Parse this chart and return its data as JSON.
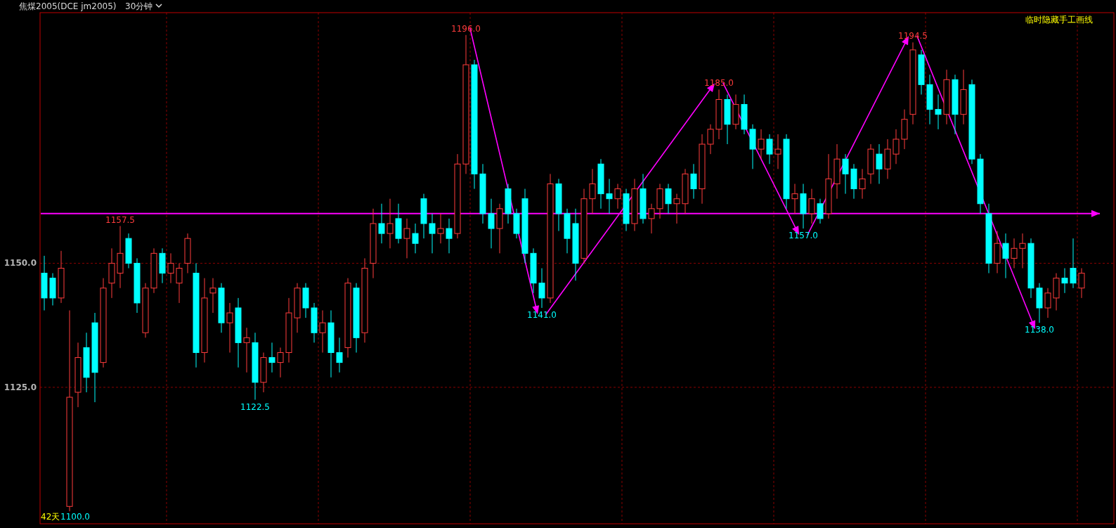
{
  "chart_data": {
    "type": "candlestick",
    "title": "焦煤2005(DCE jm2005)",
    "subtitle": "30分钟",
    "categories": [
      null,
      null,
      null,
      null,
      null,
      null,
      null,
      null,
      null,
      null,
      null,
      null,
      null,
      null,
      null,
      null,
      null,
      null,
      null,
      null,
      null,
      null,
      null,
      null,
      null,
      null,
      null,
      null,
      null,
      null,
      null,
      null,
      null,
      null,
      null,
      null,
      null,
      null,
      null,
      null,
      null,
      null,
      null,
      null,
      null,
      null,
      null,
      null,
      null,
      null,
      null,
      null,
      null,
      null,
      null,
      null,
      null,
      null,
      null,
      null,
      null,
      null,
      null,
      null,
      null,
      null,
      null,
      null,
      null,
      null,
      null,
      null,
      null,
      null,
      null,
      null,
      null,
      null,
      null,
      null,
      null,
      null,
      null,
      null,
      null,
      null,
      null,
      null,
      null,
      null,
      null,
      null,
      null,
      null,
      null,
      null,
      null,
      null,
      null,
      null,
      null,
      null,
      null,
      null,
      null,
      null,
      null,
      null,
      null,
      null,
      null,
      null,
      null,
      null,
      null,
      null,
      null,
      null,
      null,
      null,
      null,
      null,
      null,
      null
    ],
    "ohlc": [
      [
        1148,
        1151.5,
        1140.5,
        1143
      ],
      [
        1147,
        1148,
        1141.5,
        1143
      ],
      [
        1143,
        1152.5,
        1142,
        1149
      ],
      [
        1101,
        1140.5,
        1100,
        1123
      ],
      [
        1124,
        1134,
        1121,
        1131
      ],
      [
        1133,
        1136,
        1124,
        1127
      ],
      [
        1138,
        1140,
        1122,
        1128
      ],
      [
        1130,
        1147,
        1129,
        1145
      ],
      [
        1146,
        1153,
        1143,
        1150
      ],
      [
        1148,
        1157.5,
        1145,
        1152
      ],
      [
        1155,
        1156,
        1149,
        1150
      ],
      [
        1150,
        1151,
        1140,
        1142
      ],
      [
        1136,
        1146,
        1135,
        1145
      ],
      [
        1145,
        1153,
        1144,
        1152
      ],
      [
        1152,
        1153,
        1146,
        1148
      ],
      [
        1148,
        1152,
        1146,
        1150
      ],
      [
        1146,
        1150,
        1142,
        1149
      ],
      [
        1150,
        1156,
        1148,
        1155
      ],
      [
        1148,
        1150,
        1129,
        1132
      ],
      [
        1132,
        1147,
        1130,
        1143
      ],
      [
        1144,
        1147,
        1140,
        1145
      ],
      [
        1145,
        1146,
        1136,
        1138
      ],
      [
        1138,
        1142,
        1132,
        1140
      ],
      [
        1141,
        1143,
        1129,
        1134
      ],
      [
        1134,
        1137,
        1128,
        1135
      ],
      [
        1134,
        1136,
        1122.5,
        1126
      ],
      [
        1126,
        1132,
        1124,
        1131
      ],
      [
        1131,
        1134,
        1128,
        1130
      ],
      [
        1130,
        1133,
        1127,
        1132
      ],
      [
        1132,
        1143,
        1130,
        1140
      ],
      [
        1139,
        1146,
        1136,
        1145
      ],
      [
        1145,
        1146,
        1139,
        1141
      ],
      [
        1141,
        1142,
        1134,
        1136
      ],
      [
        1136,
        1140.5,
        1132,
        1138
      ],
      [
        1138,
        1140.5,
        1127,
        1132
      ],
      [
        1132,
        1135,
        1128,
        1130
      ],
      [
        1133,
        1147,
        1131,
        1146
      ],
      [
        1145,
        1146,
        1132,
        1135
      ],
      [
        1136,
        1151,
        1134,
        1149
      ],
      [
        1150,
        1161,
        1147,
        1158
      ],
      [
        1158,
        1162,
        1154,
        1156
      ],
      [
        1156,
        1163,
        1153,
        1158
      ],
      [
        1159,
        1162,
        1154,
        1155
      ],
      [
        1155,
        1159,
        1151,
        1157
      ],
      [
        1156,
        1158,
        1152,
        1154
      ],
      [
        1163,
        1164,
        1155,
        1158
      ],
      [
        1158,
        1160,
        1152,
        1156
      ],
      [
        1156,
        1160,
        1154,
        1157
      ],
      [
        1157,
        1159,
        1152,
        1155
      ],
      [
        1156,
        1172,
        1155,
        1170
      ],
      [
        1170,
        1196,
        1168,
        1190
      ],
      [
        1190,
        1191,
        1165,
        1168
      ],
      [
        1168,
        1170,
        1158,
        1160
      ],
      [
        1160,
        1163,
        1153,
        1157
      ],
      [
        1157,
        1162,
        1152,
        1161
      ],
      [
        1165,
        1166,
        1158,
        1160
      ],
      [
        1160,
        1161,
        1155,
        1156
      ],
      [
        1163,
        1165,
        1150,
        1152
      ],
      [
        1152,
        1153,
        1144,
        1146
      ],
      [
        1146,
        1149,
        1141,
        1143
      ],
      [
        1143,
        1168,
        1142,
        1166
      ],
      [
        1166,
        1167,
        1156.5,
        1160
      ],
      [
        1160,
        1161,
        1152,
        1155
      ],
      [
        1158,
        1161,
        1146.5,
        1150
      ],
      [
        1151,
        1165,
        1150,
        1163
      ],
      [
        1163,
        1169,
        1160,
        1166
      ],
      [
        1170,
        1171,
        1161,
        1164
      ],
      [
        1164,
        1167,
        1160,
        1163
      ],
      [
        1163,
        1166,
        1161,
        1165
      ],
      [
        1164,
        1165,
        1156.5,
        1158
      ],
      [
        1158,
        1167,
        1156.5,
        1165
      ],
      [
        1165,
        1168,
        1158,
        1159
      ],
      [
        1159,
        1162,
        1156,
        1161
      ],
      [
        1161,
        1166,
        1159,
        1165
      ],
      [
        1165,
        1166,
        1160,
        1162
      ],
      [
        1162,
        1164,
        1158,
        1163
      ],
      [
        1162,
        1169,
        1160,
        1168
      ],
      [
        1168,
        1170,
        1163,
        1165
      ],
      [
        1165,
        1176,
        1162,
        1174
      ],
      [
        1174,
        1178,
        1172,
        1177
      ],
      [
        1177,
        1185,
        1175,
        1183
      ],
      [
        1183,
        1184,
        1174,
        1178
      ],
      [
        1178,
        1184,
        1177,
        1182
      ],
      [
        1182,
        1184,
        1176,
        1177
      ],
      [
        1177,
        1178,
        1169,
        1173
      ],
      [
        1173,
        1177,
        1171,
        1175
      ],
      [
        1175,
        1176,
        1170,
        1172
      ],
      [
        1172,
        1176,
        1169,
        1173
      ],
      [
        1175,
        1176,
        1161,
        1163
      ],
      [
        1163,
        1166,
        1160,
        1164
      ],
      [
        1164,
        1166,
        1157,
        1160
      ],
      [
        1160,
        1165,
        1158,
        1163
      ],
      [
        1162,
        1163,
        1158,
        1159
      ],
      [
        1160,
        1172,
        1159,
        1167
      ],
      [
        1166,
        1174,
        1163,
        1171
      ],
      [
        1171,
        1172,
        1164,
        1168
      ],
      [
        1169,
        1170,
        1163,
        1165
      ],
      [
        1165,
        1169,
        1163,
        1167
      ],
      [
        1168,
        1174,
        1166,
        1173
      ],
      [
        1172,
        1174,
        1166,
        1169
      ],
      [
        1169,
        1175,
        1167,
        1173
      ],
      [
        1172,
        1177,
        1170,
        1175
      ],
      [
        1175,
        1181,
        1173,
        1179
      ],
      [
        1180,
        1194.5,
        1178,
        1193
      ],
      [
        1192,
        1193,
        1184,
        1186
      ],
      [
        1186,
        1188,
        1178,
        1181
      ],
      [
        1181,
        1184,
        1177,
        1180
      ],
      [
        1180,
        1189,
        1178,
        1187
      ],
      [
        1187,
        1188,
        1176,
        1180
      ],
      [
        1180,
        1189,
        1178,
        1185
      ],
      [
        1186,
        1187,
        1170,
        1171
      ],
      [
        1171,
        1172,
        1160,
        1162
      ],
      [
        1160,
        1162,
        1148,
        1150
      ],
      [
        1150,
        1156.5,
        1148,
        1154
      ],
      [
        1154,
        1156,
        1147,
        1151
      ],
      [
        1151,
        1155,
        1149,
        1153
      ],
      [
        1153,
        1156,
        1149,
        1154
      ],
      [
        1154,
        1155,
        1143,
        1145
      ],
      [
        1145,
        1146,
        1138,
        1141
      ],
      [
        1141,
        1145,
        1139,
        1144
      ],
      [
        1143,
        1148,
        1140.5,
        1147
      ],
      [
        1147,
        1149,
        1144,
        1146
      ],
      [
        1149,
        1155,
        1145,
        1146
      ],
      [
        1145,
        1149,
        1143,
        1148
      ]
    ],
    "colors": [
      "#00ffff",
      "#00ffff",
      "#ff3c3c",
      "#ff3c3c",
      "#ff3c3c",
      "#00ffff",
      "#00ffff",
      "#ff3c3c",
      "#ff3c3c",
      "#ff3c3c",
      "#00ffff",
      "#00ffff",
      "#ff3c3c",
      "#ff3c3c",
      "#00ffff",
      "#ff3c3c",
      "#ff3c3c",
      "#ff3c3c",
      "#00ffff",
      "#ff3c3c",
      "#ff3c3c",
      "#00ffff",
      "#ff3c3c",
      "#00ffff",
      "#ff3c3c",
      "#00ffff",
      "#ff3c3c",
      "#00ffff",
      "#ff3c3c",
      "#ff3c3c",
      "#ff3c3c",
      "#00ffff",
      "#00ffff",
      "#ff3c3c",
      "#00ffff",
      "#00ffff",
      "#ff3c3c",
      "#00ffff",
      "#ff3c3c",
      "#ff3c3c",
      "#00ffff",
      "#ff3c3c",
      "#00ffff",
      "#ff3c3c",
      "#00ffff",
      "#00ffff",
      "#00ffff",
      "#ff3c3c",
      "#00ffff",
      "#ff3c3c",
      "#ff3c3c",
      "#00ffff",
      "#00ffff",
      "#00ffff",
      "#ff3c3c",
      "#00ffff",
      "#00ffff",
      "#00ffff",
      "#00ffff",
      "#00ffff",
      "#ff3c3c",
      "#00ffff",
      "#00ffff",
      "#00ffff",
      "#ff3c3c",
      "#ff3c3c",
      "#00ffff",
      "#00ffff",
      "#ff3c3c",
      "#00ffff",
      "#ff3c3c",
      "#00ffff",
      "#ff3c3c",
      "#ff3c3c",
      "#00ffff",
      "#ff3c3c",
      "#ff3c3c",
      "#00ffff",
      "#ff3c3c",
      "#ff3c3c",
      "#ff3c3c",
      "#00ffff",
      "#ff3c3c",
      "#00ffff",
      "#00ffff",
      "#ff3c3c",
      "#00ffff",
      "#ff3c3c",
      "#00ffff",
      "#ff3c3c",
      "#00ffff",
      "#ff3c3c",
      "#00ffff",
      "#ff3c3c",
      "#ff3c3c",
      "#00ffff",
      "#00ffff",
      "#ff3c3c",
      "#ff3c3c",
      "#00ffff",
      "#ff3c3c",
      "#ff3c3c",
      "#ff3c3c",
      "#ff3c3c",
      "#00ffff",
      "#00ffff",
      "#00ffff",
      "#ff3c3c",
      "#00ffff",
      "#ff3c3c",
      "#00ffff",
      "#00ffff",
      "#00ffff",
      "#ff3c3c",
      "#00ffff",
      "#ff3c3c",
      "#ff3c3c",
      "#00ffff",
      "#00ffff",
      "#ff3c3c",
      "#ff3c3c",
      "#00ffff",
      "#00ffff",
      "#ff3c3c"
    ],
    "ylim": [
      1097.5,
      1200.5
    ],
    "yticks": [
      {
        "value": 1125,
        "label": "1125.0"
      },
      {
        "value": 1150,
        "label": "1150.0"
      }
    ],
    "grid": true,
    "ref_lines": [
      {
        "axis": "y",
        "value": 1160,
        "color": "#ff00ff"
      }
    ],
    "annotations": [
      "临时隐藏手工画线",
      "42天",
      {
        "text": "1157.5",
        "y": 1157.5
      },
      {
        "text": "1122.5",
        "y": 1122.5
      },
      {
        "text": "1196.0",
        "y": 1196
      },
      {
        "text": "1141.0",
        "y": 1141
      },
      {
        "text": "1185.0",
        "y": 1185
      },
      {
        "text": "1157.0",
        "y": 1157
      },
      {
        "text": "1194.5",
        "y": 1194.5
      },
      {
        "text": "1138.0",
        "y": 1138
      },
      "1100.0"
    ]
  }
}
